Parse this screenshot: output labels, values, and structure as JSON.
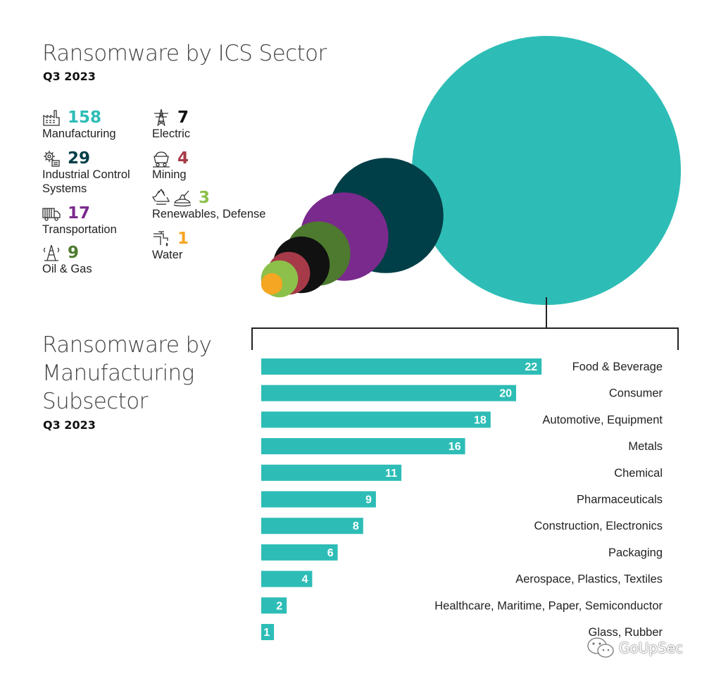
{
  "top": {
    "title": "Ransomware by ICS Sector",
    "subtitle": "Q3 2023"
  },
  "bottom": {
    "title_lines": [
      "Ransomware by",
      "Manufacturing",
      "Subsector"
    ],
    "subtitle": "Q3 2023"
  },
  "sectors": [
    {
      "name": "Manufacturing",
      "value": "158",
      "color": "#2dbdb6",
      "icon": "factory-icon"
    },
    {
      "name": "Industrial Control Systems",
      "value": "29",
      "color": "#003f47",
      "icon": "control-gear-icon"
    },
    {
      "name": "Transportation",
      "value": "17",
      "color": "#7a2a8c",
      "icon": "truck-icon"
    },
    {
      "name": "Oil & Gas",
      "value": "9",
      "color": "#4d7a2e",
      "icon": "oil-rig-icon"
    },
    {
      "name": "Electric",
      "value": "7",
      "color": "#111111",
      "icon": "power-tower-icon"
    },
    {
      "name": "Mining",
      "value": "4",
      "color": "#a63a48",
      "icon": "mine-cart-icon"
    },
    {
      "name": "Renewables, Defense",
      "value": "3",
      "color": "#8cc04a",
      "icon": "recycle-and-tank-icon"
    },
    {
      "name": "Water",
      "value": "1",
      "color": "#f5a623",
      "icon": "faucet-icon"
    }
  ],
  "labels": {
    "manufacturing": "Manufacturing",
    "ics_line1": "Industrial Control",
    "ics_line2": "Systems",
    "transportation": "Transportation",
    "oilgas": "Oil & Gas",
    "electric": "Electric",
    "mining": "Mining",
    "renewables": "Renewables, Defense",
    "water": "Water"
  },
  "watermark": "GoUpSec",
  "chart_data": [
    {
      "type": "bubble",
      "title": "Ransomware by ICS Sector",
      "subtitle": "Q3 2023",
      "categories": [
        "Manufacturing",
        "Industrial Control Systems",
        "Transportation",
        "Oil & Gas",
        "Electric",
        "Mining",
        "Renewables, Defense",
        "Water"
      ],
      "values": [
        158,
        29,
        17,
        9,
        7,
        4,
        3,
        1
      ],
      "colors": [
        "#2dbdb6",
        "#003f47",
        "#7a2a8c",
        "#4d7a2e",
        "#111111",
        "#a63a48",
        "#8cc04a",
        "#f5a623"
      ]
    },
    {
      "type": "bar",
      "orientation": "horizontal",
      "title": "Ransomware by Manufacturing Subsector",
      "subtitle": "Q3 2023",
      "categories": [
        "Food & Beverage",
        "Consumer",
        "Automotive, Equipment",
        "Metals",
        "Chemical",
        "Pharmaceuticals",
        "Construction, Electronics",
        "Packaging",
        "Aerospace, Plastics, Textiles",
        "Healthcare, Maritime, Paper, Semiconductor",
        "Glass, Rubber"
      ],
      "values": [
        22,
        20,
        18,
        16,
        11,
        9,
        8,
        6,
        4,
        2,
        1
      ],
      "bar_color": "#2dbdb6",
      "data_label_color": "#ffffff"
    }
  ]
}
